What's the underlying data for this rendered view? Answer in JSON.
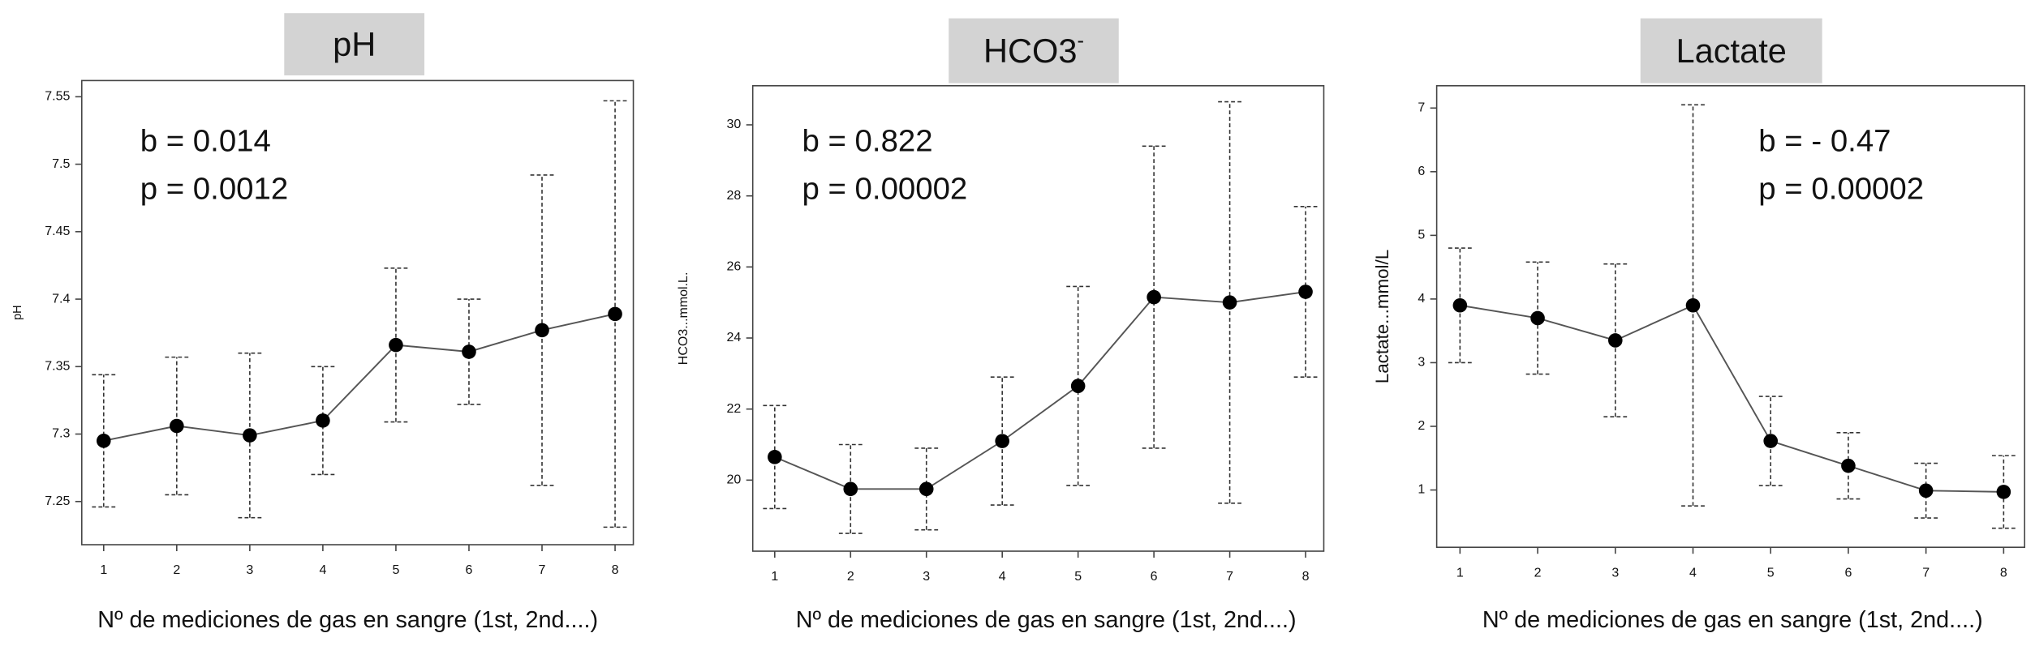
{
  "chart_data": [
    {
      "type": "line",
      "title": "pH",
      "annotations": [
        "b = 0.014",
        "p = 0.0012"
      ],
      "y_label": "pH",
      "x_label": "Nº de mediciones de gas en sangre (1st, 2nd....)",
      "x": [
        1,
        2,
        3,
        4,
        5,
        6,
        7,
        8
      ],
      "xlim": [
        0.7,
        8.25
      ],
      "xticks": [
        1,
        2,
        3,
        4,
        5,
        6,
        7,
        8
      ],
      "ylim": [
        7.218,
        7.562
      ],
      "yticks": [
        7.25,
        7.3,
        7.35,
        7.4,
        7.45,
        7.5,
        7.55
      ],
      "values": [
        7.295,
        7.306,
        7.299,
        7.31,
        7.366,
        7.361,
        7.377,
        7.389
      ],
      "errors": [
        0.049,
        0.051,
        0.061,
        0.04,
        0.057,
        0.039,
        0.115,
        0.158
      ],
      "color": "#000000",
      "grid": false
    },
    {
      "type": "line",
      "title": "HCO3",
      "title_superscript": "-",
      "annotations": [
        "b = 0.822",
        "p = 0.00002"
      ],
      "y_label": "HCO3...mmol.L.",
      "x_label": "Nº de mediciones de gas en sangre (1st, 2nd....)",
      "x": [
        1,
        2,
        3,
        4,
        5,
        6,
        7,
        8
      ],
      "xlim": [
        0.71,
        8.24
      ],
      "xticks": [
        1,
        2,
        3,
        4,
        5,
        6,
        7,
        8
      ],
      "ylim": [
        18,
        31.1
      ],
      "yticks": [
        20,
        22,
        24,
        26,
        28,
        30
      ],
      "values": [
        20.65,
        19.75,
        19.75,
        21.1,
        22.65,
        25.15,
        25.0,
        25.3
      ],
      "errors": [
        1.45,
        1.25,
        1.15,
        1.8,
        2.8,
        4.25,
        5.65,
        2.4
      ],
      "color": "#000000",
      "grid": false
    },
    {
      "type": "line",
      "title": "Lactate",
      "annotations": [
        "b = - 0.47",
        "p = 0.00002"
      ],
      "y_label": "Lactate...mmol/L",
      "x_label": "Nº de mediciones de gas en sangre (1st, 2nd....)",
      "x": [
        1,
        2,
        3,
        4,
        5,
        6,
        7,
        8
      ],
      "xlim": [
        0.7,
        8.27
      ],
      "xticks": [
        1,
        2,
        3,
        4,
        5,
        6,
        7,
        8
      ],
      "ylim": [
        0.1,
        7.35
      ],
      "yticks": [
        1,
        2,
        3,
        4,
        5,
        6,
        7
      ],
      "values": [
        3.9,
        3.7,
        3.35,
        3.9,
        1.77,
        1.38,
        0.99,
        0.97
      ],
      "errors": [
        0.9,
        0.88,
        1.2,
        3.15,
        0.7,
        0.52,
        0.43,
        0.57
      ],
      "color": "#000000",
      "grid": false
    }
  ]
}
